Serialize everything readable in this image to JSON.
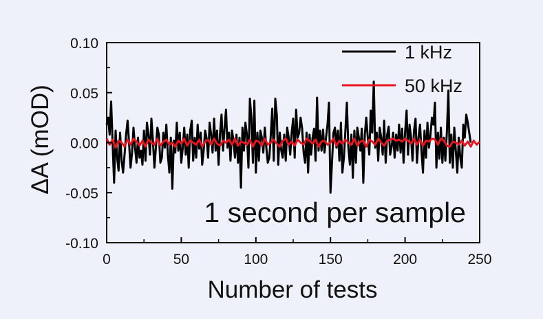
{
  "background_color": "#eef1f9",
  "chart_data": {
    "type": "line",
    "title": "",
    "xlabel": "Number of tests",
    "ylabel": "ΔA (mOD)",
    "xlim": [
      0,
      250
    ],
    "ylim": [
      -0.1,
      0.1
    ],
    "x_ticks": [
      0,
      50,
      100,
      150,
      200,
      250
    ],
    "y_ticks": [
      -0.1,
      -0.05,
      0.0,
      0.05,
      0.1
    ],
    "x_tick_labels": [
      "0",
      "50",
      "100",
      "150",
      "200",
      "250"
    ],
    "y_tick_labels": [
      "-0.10",
      "-0.05",
      "0.00",
      "0.05",
      "0.10"
    ],
    "grid": false,
    "legend_position": "top-right",
    "annotation": "1 second per sample",
    "series": [
      {
        "name": "1 kHz",
        "color": "#000000",
        "x_start": 0,
        "x_step": 1,
        "values": [
          0.018,
          0.025,
          0.008,
          0.041,
          -0.002,
          -0.04,
          0.012,
          -0.015,
          -0.028,
          0.01,
          -0.018,
          -0.03,
          -0.012,
          0.008,
          0.022,
          0.0,
          -0.025,
          -0.01,
          0.015,
          -0.005,
          -0.02,
          0.005,
          -0.015,
          -0.008,
          -0.022,
          0.012,
          -0.018,
          0.02,
          0.008,
          -0.012,
          0.024,
          0.002,
          -0.025,
          -0.005,
          0.015,
          0.008,
          -0.02,
          -0.015,
          0.01,
          -0.005,
          0.018,
          -0.012,
          -0.03,
          0.005,
          -0.046,
          0.002,
          -0.01,
          0.02,
          -0.008,
          0.01,
          -0.02,
          -0.005,
          0.015,
          -0.012,
          0.008,
          -0.025,
          0.012,
          0.022,
          -0.018,
          0.005,
          -0.015,
          0.018,
          -0.006,
          0.01,
          -0.022,
          -0.008,
          0.012,
          0.004,
          -0.015,
          0.02,
          0.008,
          -0.01,
          0.024,
          -0.008,
          0.012,
          -0.022,
          0.01,
          0.028,
          -0.008,
          0.015,
          0.033,
          -0.005,
          0.01,
          -0.018,
          0.012,
          0.002,
          -0.015,
          0.008,
          -0.02,
          0.005,
          -0.045,
          0.015,
          -0.008,
          0.02,
          0.008,
          -0.025,
          0.044,
          0.025,
          -0.02,
          0.042,
          -0.03,
          0.01,
          -0.018,
          0.012,
          0.005,
          -0.01,
          0.015,
          -0.005,
          -0.02,
          -0.015,
          0.008,
          0.034,
          -0.018,
          0.044,
          0.028,
          -0.022,
          0.01,
          -0.008,
          -0.015,
          0.008,
          -0.018,
          0.015,
          0.005,
          -0.012,
          0.01,
          0.024,
          -0.015,
          0.033,
          0.005,
          0.01,
          0.025,
          0.014,
          -0.01,
          -0.02,
          0.01,
          -0.03,
          0.008,
          -0.012,
          0.005,
          0.014,
          -0.018,
          0.045,
          -0.008,
          0.012,
          -0.008,
          0.013,
          -0.01,
          0.005,
          0.018,
          0.04,
          -0.05,
          -0.02,
          0.01,
          0.015,
          -0.005,
          0.012,
          -0.018,
          0.02,
          -0.03,
          -0.015,
          0.012,
          0.04,
          -0.005,
          -0.022,
          0.008,
          -0.035,
          0.012,
          -0.02,
          0.015,
          0.005,
          -0.008,
          0.014,
          -0.04,
          0.008,
          0.025,
          0.005,
          -0.012,
          0.032,
          0.01,
          0.061,
          -0.005,
          0.01,
          -0.018,
          0.015,
          0.005,
          -0.012,
          0.022,
          -0.02,
          0.008,
          0.016,
          -0.012,
          -0.004,
          0.01,
          -0.015,
          0.008,
          -0.008,
          0.018,
          -0.01,
          0.014,
          -0.02,
          0.01,
          0.032,
          -0.012,
          0.018,
          0.005,
          -0.018,
          0.012,
          0.024,
          -0.02,
          0.005,
          0.018,
          -0.008,
          -0.03,
          0.012,
          -0.015,
          0.02,
          -0.005,
          0.008,
          0.025,
          0.018,
          0.04,
          -0.025,
          0.01,
          -0.016,
          0.015,
          -0.02,
          0.005,
          -0.018,
          0.01,
          0.052,
          -0.02,
          0.008,
          -0.025,
          0.015,
          -0.008,
          -0.03,
          0.005,
          -0.015,
          -0.025,
          0.018,
          0.005,
          0.028,
          0.02,
          0.01,
          0.0
        ]
      },
      {
        "name": "50 kHz",
        "color": "#e8141e",
        "x_start": 0,
        "x_step": 2,
        "values": [
          0.004,
          -0.002,
          0.003,
          -0.005,
          0.002,
          0.0,
          -0.004,
          0.003,
          -0.002,
          0.004,
          0.001,
          -0.003,
          0.002,
          -0.004,
          0.003,
          0.0,
          -0.002,
          0.004,
          -0.003,
          0.001,
          0.003,
          -0.002,
          0.0,
          -0.004,
          0.002,
          -0.001,
          0.004,
          -0.003,
          0.002,
          0.0,
          -0.002,
          0.003,
          -0.004,
          0.001,
          0.003,
          -0.002,
          0.004,
          -0.001,
          -0.003,
          0.002,
          0.0,
          0.003,
          -0.002,
          0.004,
          -0.003,
          0.001,
          0.0,
          -0.002,
          0.003,
          -0.004,
          0.002,
          0.001,
          -0.003,
          0.004,
          -0.002,
          0.0,
          0.003,
          -0.001,
          -0.004,
          0.002,
          0.004,
          -0.002,
          0.001,
          -0.003,
          0.003,
          0.0,
          -0.002,
          0.004,
          0.002,
          -0.001,
          0.003,
          -0.004,
          0.001,
          0.002,
          -0.002,
          0.0,
          0.004,
          -0.003,
          0.002,
          -0.001,
          0.003,
          0.0,
          -0.002,
          0.004,
          -0.003,
          0.001,
          0.002,
          -0.004,
          0.003,
          0.001,
          -0.002,
          0.004,
          0.0,
          -0.003,
          0.002,
          0.003,
          0.004,
          0.002,
          0.003,
          0.001,
          0.004,
          0.002,
          -0.001,
          0.004,
          -0.002,
          0.003,
          -0.003,
          0.002,
          0.001,
          0.004,
          0.003,
          -0.002,
          0.004,
          0.002,
          -0.003,
          -0.004,
          0.001,
          0.0,
          -0.002,
          0.002,
          -0.003,
          0.001,
          -0.004,
          0.002,
          -0.002,
          0.001
        ]
      }
    ]
  }
}
